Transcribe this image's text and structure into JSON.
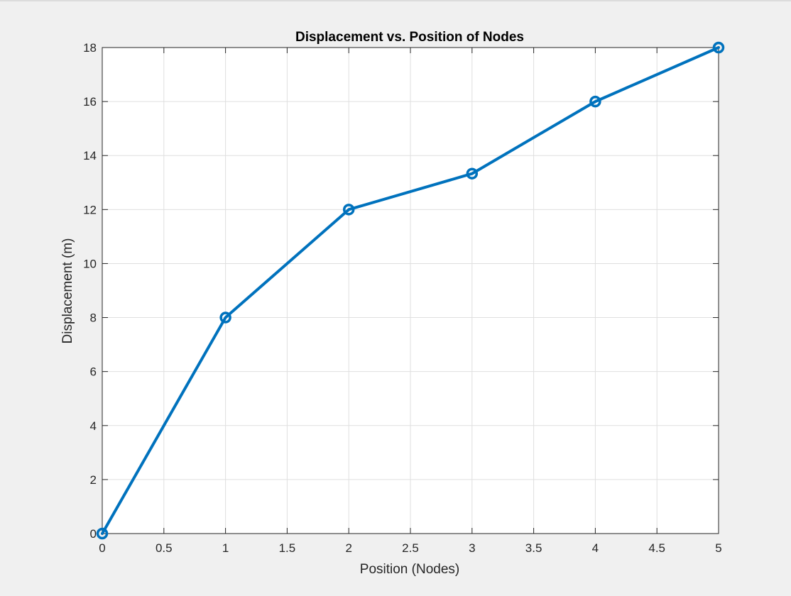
{
  "chart_data": {
    "type": "line",
    "title": "Displacement vs. Position of Nodes",
    "xlabel": "Position (Nodes)",
    "ylabel": "Displacement (m)",
    "x": [
      0,
      1,
      2,
      3,
      4,
      5
    ],
    "series": [
      {
        "values": [
          0,
          8,
          12,
          13.33,
          16,
          18
        ],
        "color": "#0072bd",
        "marker": "circle"
      }
    ],
    "xlim": [
      0,
      5
    ],
    "ylim": [
      0,
      18
    ],
    "xticks": [
      0,
      0.5,
      1,
      1.5,
      2,
      2.5,
      3,
      3.5,
      4,
      4.5,
      5
    ],
    "xtick_labels": [
      "0",
      "0.5",
      "1",
      "1.5",
      "2",
      "2.5",
      "3",
      "3.5",
      "4",
      "4.5",
      "5"
    ],
    "yticks": [
      0,
      2,
      4,
      6,
      8,
      10,
      12,
      14,
      16,
      18
    ],
    "ytick_labels": [
      "0",
      "2",
      "4",
      "6",
      "8",
      "10",
      "12",
      "14",
      "16",
      "18"
    ],
    "grid": true,
    "background": "#ffffff",
    "figure_background": "#f0f0f0"
  }
}
